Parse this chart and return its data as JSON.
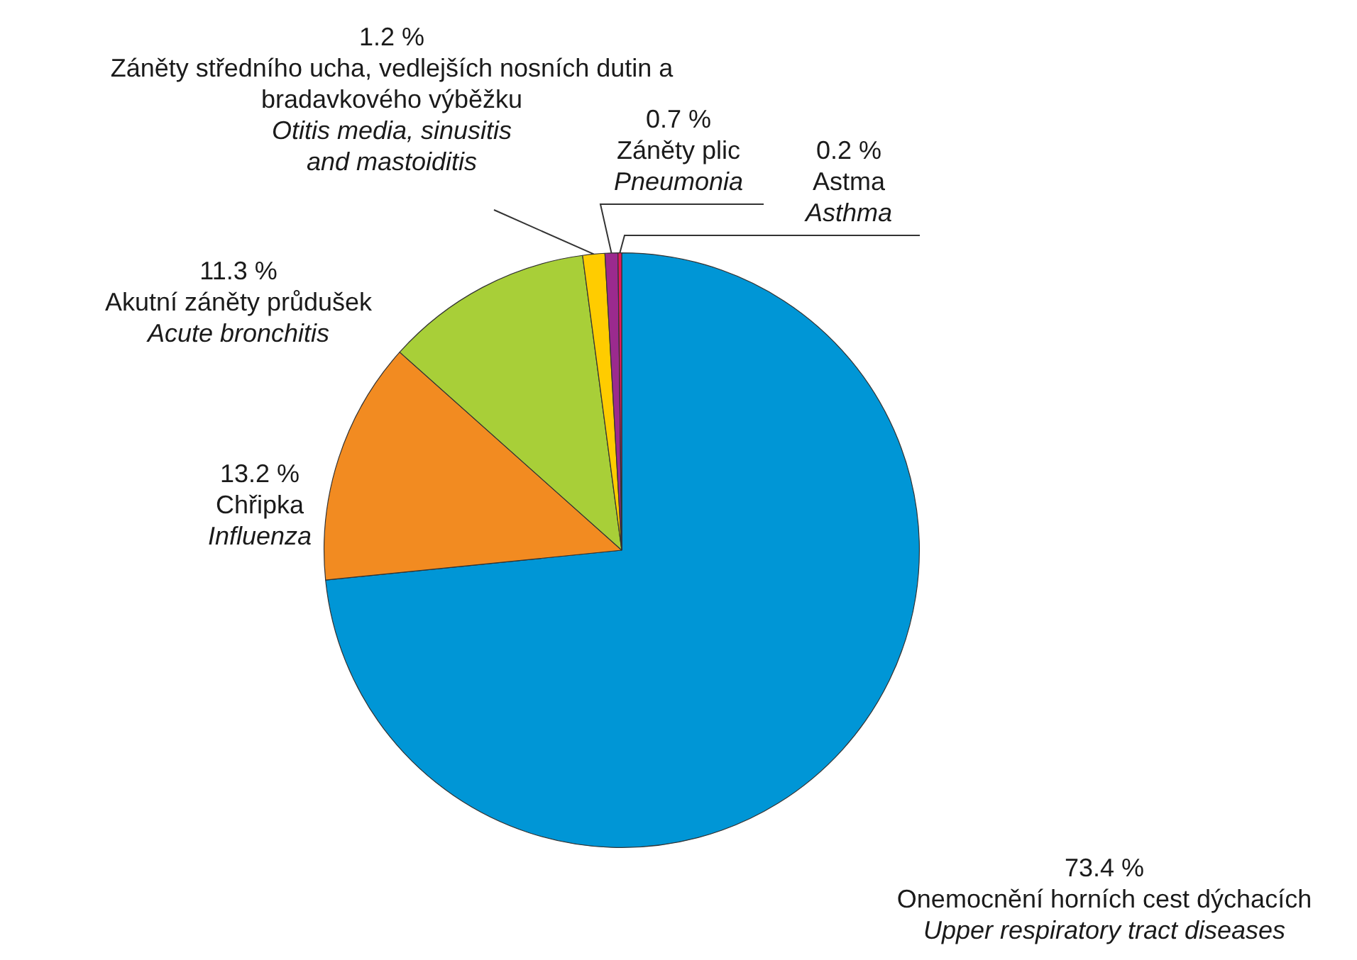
{
  "chart_data": {
    "type": "pie",
    "categories": [
      "Onemocnění horních cest dýchacích\nUpper respiratory tract diseases",
      "Chřipka\nInfluenza",
      "Akutní záněty průdušek\nAcute bronchitis",
      "Záněty středního ucha, vedlejších nosních dutin a bradavkového výběžku\nOtitis media, sinusitis and mastoiditis",
      "Záněty plic\nPneumonia",
      "Astma\nAsthma"
    ],
    "values": [
      73.4,
      13.2,
      11.3,
      1.2,
      0.7,
      0.2
    ],
    "colors": [
      "#0096d6",
      "#f28b21",
      "#a8cf38",
      "#ffcc00",
      "#9b2a8e",
      "#e5185d"
    ],
    "value_labels": [
      "73.4 %",
      "13.2 %",
      "11.3 %",
      "1.2 %",
      "0.7 %",
      "0.2 %"
    ],
    "legend": false
  }
}
